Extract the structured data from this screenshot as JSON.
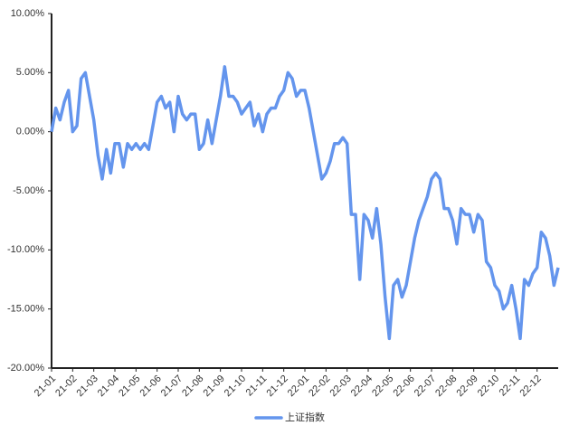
{
  "chart_data": {
    "type": "line",
    "xlim": [
      0,
      24
    ],
    "xticks": [
      {
        "value": 0,
        "label": "21-01"
      },
      {
        "value": 1,
        "label": "21-02"
      },
      {
        "value": 2,
        "label": "21-03"
      },
      {
        "value": 3,
        "label": "21-04"
      },
      {
        "value": 4,
        "label": "21-05"
      },
      {
        "value": 5,
        "label": "21-06"
      },
      {
        "value": 6,
        "label": "21-07"
      },
      {
        "value": 7,
        "label": "21-08"
      },
      {
        "value": 8,
        "label": "21-09"
      },
      {
        "value": 9,
        "label": "21-10"
      },
      {
        "value": 10,
        "label": "21-11"
      },
      {
        "value": 11,
        "label": "21-12"
      },
      {
        "value": 12,
        "label": "22-01"
      },
      {
        "value": 13,
        "label": "22-02"
      },
      {
        "value": 14,
        "label": "22-03"
      },
      {
        "value": 15,
        "label": "22-04"
      },
      {
        "value": 16,
        "label": "22-05"
      },
      {
        "value": 17,
        "label": "22-06"
      },
      {
        "value": 18,
        "label": "22-07"
      },
      {
        "value": 19,
        "label": "22-08"
      },
      {
        "value": 20,
        "label": "22-09"
      },
      {
        "value": 21,
        "label": "22-10"
      },
      {
        "value": 22,
        "label": "22-11"
      },
      {
        "value": 23,
        "label": "22-12"
      }
    ],
    "ylim": [
      -20,
      10
    ],
    "yticks": [
      {
        "value": -20,
        "label": "-20.00%"
      },
      {
        "value": -15,
        "label": "-15.00%"
      },
      {
        "value": -10,
        "label": "-10.00%"
      },
      {
        "value": -5,
        "label": "-5.00%"
      },
      {
        "value": 0,
        "label": "0.00%"
      },
      {
        "value": 5,
        "label": "5.00%"
      },
      {
        "value": 10,
        "label": "10.00%"
      }
    ],
    "legend": "bottom",
    "x": [
      0,
      0.2,
      0.4,
      0.6,
      0.8,
      1,
      1.2,
      1.4,
      1.6,
      1.8,
      2,
      2.2,
      2.4,
      2.6,
      2.8,
      3,
      3.2,
      3.4,
      3.6,
      3.8,
      4,
      4.2,
      4.4,
      4.6,
      4.8,
      5,
      5.2,
      5.4,
      5.6,
      5.8,
      6,
      6.2,
      6.4,
      6.6,
      6.8,
      7,
      7.2,
      7.4,
      7.6,
      7.8,
      8,
      8.2,
      8.4,
      8.6,
      8.8,
      9,
      9.2,
      9.4,
      9.6,
      9.8,
      10,
      10.2,
      10.4,
      10.6,
      10.8,
      11,
      11.2,
      11.4,
      11.6,
      11.8,
      12,
      12.2,
      12.4,
      12.6,
      12.8,
      13,
      13.2,
      13.4,
      13.6,
      13.8,
      14,
      14.2,
      14.4,
      14.6,
      14.8,
      15,
      15.2,
      15.4,
      15.6,
      15.8,
      16,
      16.2,
      16.4,
      16.6,
      16.8,
      17,
      17.2,
      17.4,
      17.6,
      17.8,
      18,
      18.2,
      18.4,
      18.6,
      18.8,
      19,
      19.2,
      19.4,
      19.6,
      19.8,
      20,
      20.2,
      20.4,
      20.6,
      20.8,
      21,
      21.2,
      21.4,
      21.6,
      21.8,
      22,
      22.2,
      22.4,
      22.6,
      22.8,
      23,
      23.2,
      23.4,
      23.6,
      23.8,
      24
    ],
    "series": [
      {
        "name": "上证指数",
        "color": "#6495ed",
        "values": [
          0,
          2,
          1,
          2.5,
          3.5,
          0,
          0.5,
          4.5,
          5,
          3,
          1,
          -2,
          -4,
          -1.5,
          -3.5,
          -1,
          -1,
          -3,
          -1,
          -1.5,
          -1,
          -1.5,
          -1,
          -1.5,
          0.5,
          2.5,
          3,
          2,
          2.5,
          0,
          3,
          1.5,
          1,
          1.5,
          1.5,
          -1.5,
          -1,
          1,
          -1,
          1,
          3,
          5.5,
          3,
          3,
          2.5,
          1.5,
          2,
          2.5,
          0.5,
          1.5,
          0,
          1.5,
          2,
          2,
          3,
          3.5,
          5,
          4.5,
          3,
          3.5,
          3.5,
          2,
          0,
          -2,
          -4,
          -3.5,
          -2.5,
          -1,
          -1,
          -0.5,
          -1,
          -7,
          -7,
          -12.5,
          -7,
          -7.5,
          -9,
          -6.5,
          -9.5,
          -14,
          -17.5,
          -13,
          -12.5,
          -14,
          -13,
          -11,
          -9,
          -7.5,
          -6.5,
          -5.5,
          -4,
          -3.5,
          -4,
          -6.5,
          -6.5,
          -7.5,
          -9.5,
          -6.5,
          -7,
          -7,
          -8.5,
          -7,
          -7.5,
          -11,
          -11.5,
          -13,
          -13.5,
          -15,
          -14.5,
          -13,
          -15,
          -17.5,
          -12.5,
          -13,
          -12,
          -11.5,
          -8.5,
          -9,
          -10.5,
          -13,
          -11.5
        ]
      }
    ]
  }
}
